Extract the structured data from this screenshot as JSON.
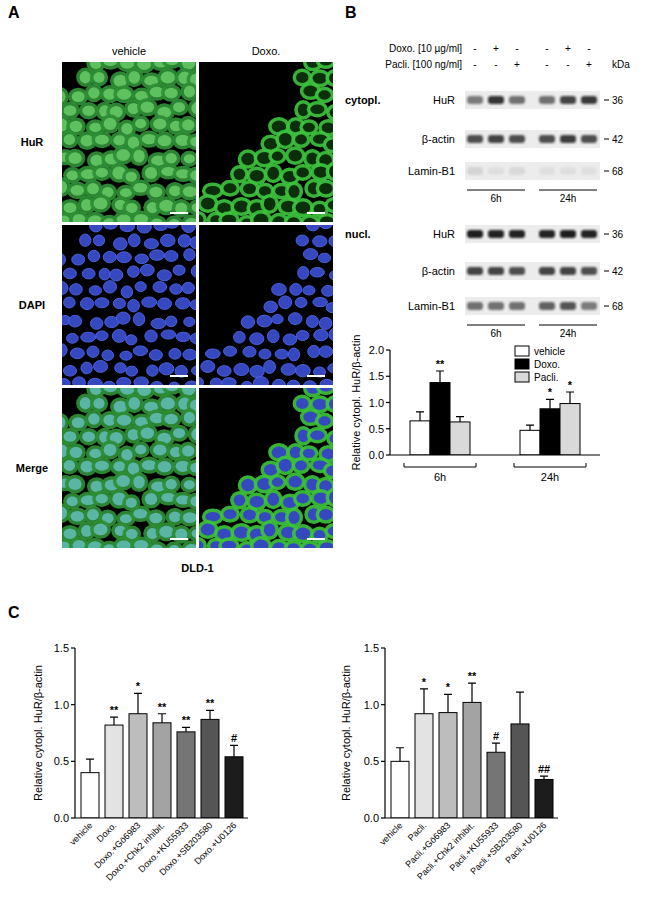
{
  "panel_a": {
    "letter": "A",
    "columns": [
      "vehicle",
      "Doxo."
    ],
    "rows": [
      "HuR",
      "DAPI",
      "Merge"
    ],
    "cell_line": "DLD-1"
  },
  "panel_b_blot": {
    "letter": "B",
    "treatments": [
      {
        "label": "Doxo. [10 µg/ml]",
        "lanes": [
          "-",
          "+",
          "-",
          "-",
          "+",
          "-"
        ]
      },
      {
        "label": "Pacli. [100 ng/ml]",
        "lanes": [
          "-",
          "-",
          "+",
          "-",
          "-",
          "+"
        ]
      }
    ],
    "kda_label": "kDa",
    "fractions": [
      {
        "label": "cytopl.",
        "blots": [
          {
            "protein": "HuR",
            "kda": 36
          },
          {
            "protein": "β-actin",
            "kda": 42
          },
          {
            "protein": "Lamin-B1",
            "kda": 68
          }
        ]
      },
      {
        "label": "nucl.",
        "blots": [
          {
            "protein": "HuR",
            "kda": 36
          },
          {
            "protein": "β-actin",
            "kda": 42
          },
          {
            "protein": "Lamin-B1",
            "kda": 68
          }
        ]
      }
    ],
    "timepoints": [
      "6h",
      "24h"
    ]
  },
  "panel_c": {
    "letter": "C"
  },
  "chart_data": [
    {
      "type": "bar",
      "y_label": "Relative cytopl. HuR/β-actin",
      "categories": [
        "6h",
        "24h"
      ],
      "series": [
        {
          "name": "vehicle",
          "color": "#ffffff",
          "values": [
            0.65,
            0.47
          ],
          "errors": [
            0.17,
            0.1
          ],
          "significance": [
            null,
            null
          ]
        },
        {
          "name": "Doxo.",
          "color": "#000000",
          "values": [
            1.38,
            0.88
          ],
          "errors": [
            0.22,
            0.18
          ],
          "significance": [
            "**",
            "*"
          ]
        },
        {
          "name": "Pacli.",
          "color": "#d9d9d9",
          "values": [
            0.63,
            0.98
          ],
          "errors": [
            0.1,
            0.22
          ],
          "significance": [
            null,
            "*"
          ]
        }
      ],
      "ylim": [
        0,
        2
      ],
      "yticks": [
        {
          "value": 0,
          "label": "0.0"
        },
        {
          "value": 0.5,
          "label": "0.5"
        },
        {
          "value": 1,
          "label": "1.0"
        },
        {
          "value": 1.5,
          "label": "1.5"
        },
        {
          "value": 2,
          "label": "2.0"
        }
      ],
      "legend": "top-right"
    },
    {
      "type": "bar",
      "y_label": "Relative cytopl. HuR/β-actin",
      "categories": [
        "vehicle",
        "Doxo.",
        "Doxo.+Gö6983",
        "Doxo.+Chk2 inhibit.",
        "Doxo.+KU55933",
        "Doxo.+SB203580",
        "Doxo.+U0126"
      ],
      "values": [
        0.4,
        0.82,
        0.92,
        0.84,
        0.76,
        0.87,
        0.54
      ],
      "errors": [
        0.12,
        0.07,
        0.18,
        0.08,
        0.04,
        0.08,
        0.1
      ],
      "significance": [
        null,
        "**",
        "*",
        "**",
        "**",
        "**",
        "#"
      ],
      "colors": [
        "#ffffff",
        "#e3e3e3",
        "#bdbdbd",
        "#a3a3a3",
        "#757575",
        "#555555",
        "#1c1c1c"
      ],
      "ylim": [
        0,
        1.5
      ],
      "yticks": [
        {
          "value": 0,
          "label": "0.0"
        },
        {
          "value": 0.5,
          "label": "0.5"
        },
        {
          "value": 1,
          "label": "1.0"
        },
        {
          "value": 1.5,
          "label": "1.5"
        }
      ]
    },
    {
      "type": "bar",
      "y_label": "Relative cytopl. HuR/β-actin",
      "categories": [
        "vehicle",
        "Pacli.",
        "Pacli.+Gö6983",
        "Pacli.+Chk2 inhibit.",
        "Pacli.+KU55933",
        "Pacli.+SB203580",
        "Pacli.+U0126"
      ],
      "values": [
        0.5,
        0.92,
        0.93,
        1.02,
        0.58,
        0.83,
        0.34
      ],
      "errors": [
        0.12,
        0.22,
        0.16,
        0.17,
        0.08,
        0.28,
        0.03
      ],
      "significance": [
        null,
        "*",
        "*",
        "**",
        "#",
        null,
        "##"
      ],
      "colors": [
        "#ffffff",
        "#e3e3e3",
        "#bdbdbd",
        "#a3a3a3",
        "#757575",
        "#555555",
        "#1c1c1c"
      ],
      "ylim": [
        0,
        1.5
      ],
      "yticks": [
        {
          "value": 0,
          "label": "0.0"
        },
        {
          "value": 0.5,
          "label": "0.5"
        },
        {
          "value": 1,
          "label": "1.0"
        },
        {
          "value": 1.5,
          "label": "1.5"
        }
      ]
    }
  ]
}
